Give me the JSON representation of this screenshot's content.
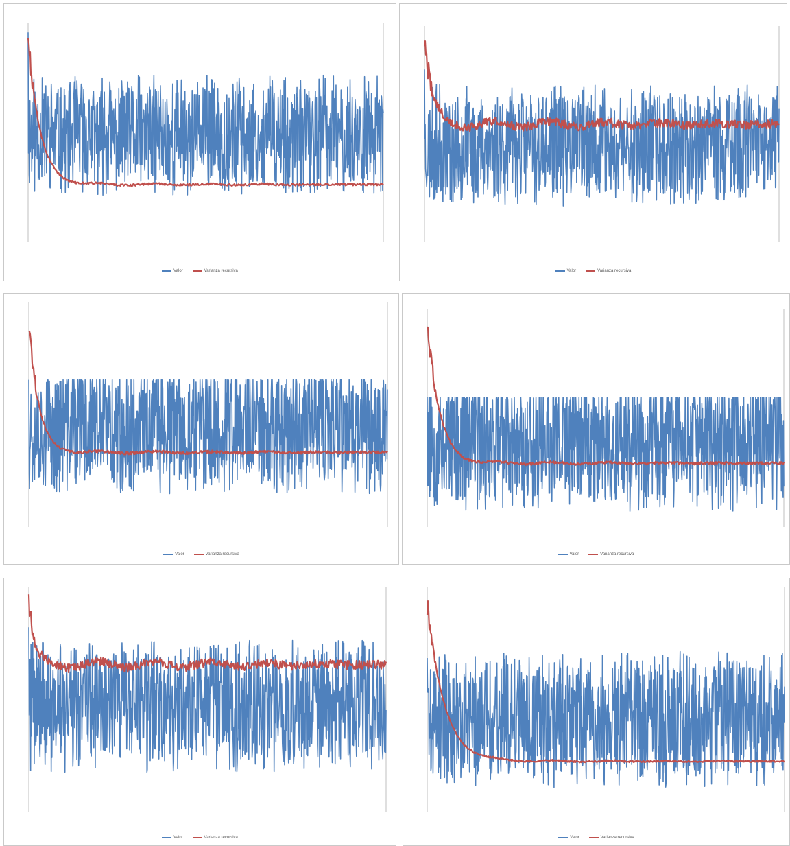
{
  "colors": {
    "valor": "#4f81bd",
    "varianza": "#c0504d",
    "axis": "#bfbfbf",
    "legend_text": "#595959"
  },
  "legend": {
    "valor_label": "Valor",
    "varianza_label": "Varianza recursiva"
  },
  "chart_data": [
    {
      "type": "line",
      "title": "",
      "xlabel": "",
      "ylabel": "",
      "grid": false,
      "legend_position": "bottom",
      "series_seed": 11,
      "valor": {
        "center": 0.5,
        "amplitude": 0.56,
        "clip": [
          0.05,
          0.98
        ],
        "spike": 0.99
      },
      "varianza": {
        "start": 0.95,
        "settle": 0.27,
        "wobble": 0.005,
        "decay": 0.1
      }
    },
    {
      "type": "line",
      "title": "",
      "xlabel": "",
      "ylabel": "",
      "grid": false,
      "legend_position": "bottom",
      "series_seed": 23,
      "valor": {
        "center": 0.46,
        "amplitude": 0.58,
        "clip": [
          0.06,
          0.94
        ],
        "spike": 0.82
      },
      "varianza": {
        "start": 0.98,
        "settle": 0.56,
        "wobble": 0.02,
        "decay": 0.06
      }
    },
    {
      "type": "line",
      "title": "",
      "xlabel": "",
      "ylabel": "",
      "grid": false,
      "legend_position": "bottom",
      "series_seed": 37,
      "valor": {
        "center": 0.45,
        "amplitude": 0.6,
        "clip": [
          0.14,
          0.67
        ],
        "spike": 0.98
      },
      "varianza": {
        "start": 0.95,
        "settle": 0.34,
        "wobble": 0.006,
        "decay": 0.08
      }
    },
    {
      "type": "line",
      "title": "",
      "xlabel": "",
      "ylabel": "",
      "grid": false,
      "legend_position": "bottom",
      "series_seed": 53,
      "valor": {
        "center": 0.4,
        "amplitude": 0.66,
        "clip": [
          0.05,
          0.61
        ],
        "spike": 0.96
      },
      "varianza": {
        "start": 0.97,
        "settle": 0.3,
        "wobble": 0.006,
        "decay": 0.1
      }
    },
    {
      "type": "line",
      "title": "",
      "xlabel": "",
      "ylabel": "",
      "grid": false,
      "legend_position": "bottom",
      "series_seed": 71,
      "valor": {
        "center": 0.48,
        "amplitude": 0.6,
        "clip": [
          0.14,
          0.84
        ],
        "spike": 0.95
      },
      "varianza": {
        "start": 0.98,
        "settle": 0.67,
        "wobble": 0.02,
        "decay": 0.04
      }
    },
    {
      "type": "line",
      "title": "",
      "xlabel": "",
      "ylabel": "",
      "grid": false,
      "legend_position": "bottom",
      "series_seed": 89,
      "valor": {
        "center": 0.42,
        "amplitude": 0.62,
        "clip": [
          0.08,
          0.79
        ],
        "spike": 0.7
      },
      "varianza": {
        "start": 0.95,
        "settle": 0.23,
        "wobble": 0.004,
        "decay": 0.14
      }
    }
  ]
}
